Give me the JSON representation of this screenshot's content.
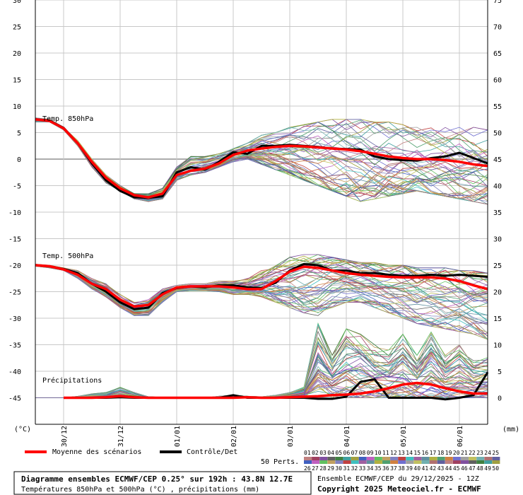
{
  "chart_data": {
    "type": "line",
    "title": "Diagramme ensembles ECMWF/CEP 0.25° sur 192h : 43.8N 12.7E",
    "subtitle": "Températures 850hPa et 500hPa (°C) , précipitations (mm)",
    "run_info": "Ensemble ECMWF/CEP du 29/12/2025 - 12Z",
    "copyright": "Copyright 2025 Meteociel.fr - ECMWF",
    "ylabel_left": "(°C)",
    "ylabel_right": "(mm)",
    "ylim_left": [
      -50,
      30
    ],
    "ylim_right": [
      -5,
      75
    ],
    "yticks_left": [
      30,
      25,
      20,
      15,
      10,
      5,
      0,
      -5,
      -10,
      -15,
      -20,
      -25,
      -30,
      -35,
      -40,
      -45
    ],
    "yticks_right": [
      75,
      70,
      65,
      60,
      55,
      50,
      45,
      40,
      35,
      30,
      25,
      20,
      15,
      10,
      5,
      0
    ],
    "x_range_hours": [
      0,
      192
    ],
    "x_tick_labels": [
      "30/12",
      "31/12",
      "01/01",
      "02/01",
      "03/01",
      "04/01",
      "05/01",
      "06/01"
    ],
    "x_tick_hours": [
      12,
      36,
      60,
      84,
      108,
      132,
      156,
      180
    ],
    "grid": true,
    "legend": {
      "mean_label": "Moyenne des scénarios",
      "control_label": "Contrôle/Det",
      "perts_label": "50 Perts.",
      "pert_numbers_top": [
        "01",
        "02",
        "03",
        "04",
        "05",
        "06",
        "07",
        "08",
        "09",
        "10",
        "11",
        "12",
        "13",
        "14",
        "15",
        "16",
        "17",
        "18",
        "19",
        "20",
        "21",
        "22",
        "23",
        "24",
        "25"
      ],
      "pert_numbers_bottom": [
        "26",
        "27",
        "28",
        "29",
        "30",
        "31",
        "32",
        "33",
        "34",
        "35",
        "36",
        "37",
        "38",
        "39",
        "40",
        "41",
        "42",
        "43",
        "44",
        "45",
        "46",
        "47",
        "48",
        "49",
        "50"
      ]
    },
    "panels": [
      {
        "name": "Temp. 850hPa",
        "unit_axis": "left"
      },
      {
        "name": "Temp. 500hPa",
        "unit_axis": "left"
      },
      {
        "name": "Précipitations",
        "unit_axis": "right_mm"
      }
    ],
    "x_hours": [
      0,
      6,
      12,
      18,
      24,
      30,
      36,
      42,
      48,
      54,
      60,
      66,
      72,
      78,
      84,
      90,
      96,
      102,
      108,
      114,
      120,
      126,
      132,
      138,
      144,
      150,
      156,
      162,
      168,
      174,
      180,
      186,
      192
    ],
    "series": [
      {
        "name": "Moyenne des scénarios",
        "panel": "Temp. 850hPa",
        "color": "#ff0000",
        "values": [
          7.5,
          7.2,
          5.8,
          3,
          -0.5,
          -3.5,
          -5.5,
          -6.8,
          -7.2,
          -6.5,
          -3,
          -2.2,
          -1.8,
          -0.8,
          0.8,
          1.6,
          2,
          2.3,
          2.5,
          2.4,
          2.2,
          2,
          1.8,
          1.5,
          1,
          0.5,
          0.2,
          0,
          0,
          -0.2,
          -0.5,
          -1,
          -1.3
        ]
      },
      {
        "name": "Contrôle/Det",
        "panel": "Temp. 850hPa",
        "color": "#000000",
        "values": [
          7.5,
          7.3,
          5.9,
          3,
          -0.8,
          -4,
          -6,
          -7.2,
          -7.3,
          -7,
          -2.5,
          -1.5,
          -2,
          -0.5,
          1.3,
          1,
          2.5,
          2.5,
          2.7,
          2.5,
          2.3,
          2,
          1.9,
          1.8,
          0.5,
          0,
          -0.2,
          -0.3,
          0.2,
          0.5,
          1.2,
          0.2,
          -0.8
        ]
      },
      {
        "name": "Moyenne des scénarios",
        "panel": "Temp. 500hPa",
        "color": "#ff0000",
        "values": [
          -20,
          -20.2,
          -20.8,
          -21.8,
          -23.5,
          -24.5,
          -26.5,
          -27.8,
          -27.5,
          -25.5,
          -24.2,
          -24,
          -24,
          -24,
          -24.2,
          -24.5,
          -24.5,
          -23,
          -21.2,
          -20.3,
          -20.5,
          -21,
          -21.5,
          -21.8,
          -22,
          -22.2,
          -22.3,
          -22.3,
          -22.3,
          -22.5,
          -23,
          -23.8,
          -24.5
        ]
      },
      {
        "name": "Contrôle/Det",
        "panel": "Temp. 500hPa",
        "color": "#000000",
        "values": [
          -20,
          -20.2,
          -20.7,
          -21.5,
          -23.5,
          -25,
          -27,
          -28.3,
          -28,
          -25.3,
          -24.3,
          -24,
          -24.2,
          -23.8,
          -23.8,
          -24.2,
          -24.3,
          -23.3,
          -21,
          -19.8,
          -20,
          -21,
          -21,
          -21.5,
          -21.5,
          -21.8,
          -22,
          -22,
          -21.8,
          -22,
          -21.8,
          -22,
          -22.2
        ]
      },
      {
        "name": "Moyenne des scénarios",
        "panel": "Précipitations",
        "color": "#ff0000",
        "values": [
          null,
          null,
          0,
          0,
          0,
          0.1,
          0.3,
          0.1,
          0,
          0,
          0,
          0,
          0,
          0,
          0,
          0.1,
          0,
          0,
          0.1,
          0.2,
          0.3,
          0.5,
          0.6,
          0.8,
          1.2,
          1.8,
          2.5,
          2.8,
          2.5,
          1.8,
          1.2,
          0.8,
          0.8
        ]
      },
      {
        "name": "Contrôle/Det",
        "panel": "Précipitations",
        "color": "#000000",
        "values": [
          null,
          null,
          0,
          0,
          0,
          0,
          0.1,
          0,
          0,
          0,
          0,
          0,
          0,
          0,
          0.5,
          0,
          0,
          0,
          0,
          0,
          -0.2,
          -0.2,
          0.2,
          3,
          3.5,
          0,
          0,
          0,
          0,
          -0.3,
          0,
          0.5,
          4.8
        ]
      }
    ],
    "ensemble_members": {
      "count": 50,
      "spread_850": {
        "min": [
          7,
          7,
          5.5,
          2.5,
          -1.5,
          -4.5,
          -6,
          -7.5,
          -8,
          -7.5,
          -4,
          -3,
          -2.5,
          -1.5,
          -0.5,
          0,
          -1,
          -2,
          -3,
          -4,
          -5,
          -6,
          -7,
          -8,
          -7.5,
          -7,
          -6.5,
          -6,
          -6.5,
          -7,
          -7.5,
          -8,
          -8.5
        ],
        "max": [
          7.8,
          7.5,
          6,
          3.5,
          0,
          -3,
          -5,
          -6.5,
          -6.5,
          -5.5,
          -1.5,
          0.5,
          0.5,
          1,
          2,
          3,
          4.5,
          5,
          6,
          6.5,
          7,
          7.5,
          7.5,
          7.5,
          7,
          7,
          6.5,
          6,
          6,
          6,
          6,
          6,
          5.5
        ]
      },
      "spread_500": {
        "min": [
          -20.2,
          -20.5,
          -21,
          -22.5,
          -24.5,
          -26,
          -28,
          -29.5,
          -29.5,
          -27,
          -25,
          -24.8,
          -24.8,
          -25,
          -25.5,
          -25.5,
          -26,
          -27,
          -28,
          -29,
          -29.5,
          -28,
          -27,
          -27,
          -28,
          -29,
          -30,
          -31,
          -31.5,
          -32,
          -32.5,
          -33,
          -34
        ]
      },
      "spread_500_max": [
        -19.8,
        -20,
        -20.5,
        -21,
        -22.5,
        -23.5,
        -25.5,
        -27,
        -26.5,
        -24.5,
        -23.8,
        -23.5,
        -23.5,
        -23,
        -23,
        -22.5,
        -21,
        -19.5,
        -18.5,
        -18,
        -18,
        -18.5,
        -19,
        -19.5,
        -19.5,
        -20,
        -20,
        -20.5,
        -20.5,
        -20.5,
        -21,
        -21,
        -21.5
      ],
      "precip_max": [
        0,
        0,
        0,
        0.3,
        0.8,
        1,
        2,
        1,
        0.2,
        0.1,
        0,
        0,
        0,
        0.3,
        0.5,
        0.3,
        0.2,
        0.5,
        1,
        2,
        14,
        8,
        13,
        12,
        10,
        9,
        12,
        8,
        13,
        8,
        10,
        7,
        8
      ]
    }
  }
}
